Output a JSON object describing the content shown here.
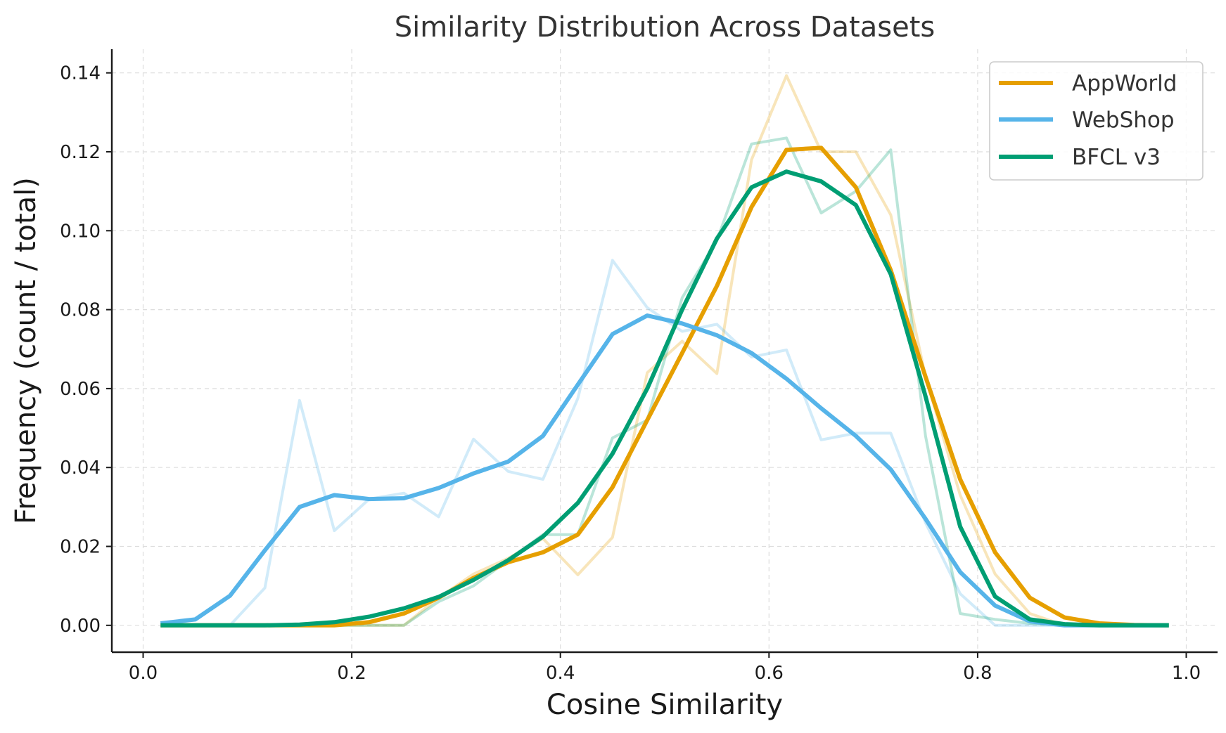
{
  "chart_data": {
    "type": "line",
    "title": "Similarity Distribution Across Datasets",
    "xlabel": "Cosine Similarity",
    "ylabel": "Frequency (count / total)",
    "xlim": [
      -0.03,
      1.03
    ],
    "ylim": [
      -0.0068,
      0.146
    ],
    "xticks": [
      0.0,
      0.2,
      0.4,
      0.6,
      0.8,
      1.0
    ],
    "xtick_labels": [
      "0.0",
      "0.2",
      "0.4",
      "0.6",
      "0.8",
      "1.0"
    ],
    "yticks": [
      0.0,
      0.02,
      0.04,
      0.06,
      0.08,
      0.1,
      0.12,
      0.14
    ],
    "ytick_labels": [
      "0.00",
      "0.02",
      "0.04",
      "0.06",
      "0.08",
      "0.10",
      "0.12",
      "0.14"
    ],
    "grid": true,
    "legend_position": "top-right",
    "x": [
      0.0167,
      0.05,
      0.0833,
      0.1167,
      0.15,
      0.1833,
      0.2167,
      0.25,
      0.2833,
      0.3167,
      0.35,
      0.3833,
      0.4167,
      0.45,
      0.4833,
      0.5167,
      0.55,
      0.5833,
      0.6167,
      0.65,
      0.6833,
      0.7167,
      0.75,
      0.7833,
      0.8167,
      0.85,
      0.8833,
      0.9167,
      0.95,
      0.9833
    ],
    "series": [
      {
        "name": "AppWorld",
        "color": "#E69F00",
        "smoothed": [
          0.0,
          0.0,
          0.0,
          0.0,
          0.0,
          0.0,
          0.0008,
          0.003,
          0.007,
          0.012,
          0.016,
          0.0185,
          0.023,
          0.035,
          0.052,
          0.069,
          0.086,
          0.106,
          0.1205,
          0.121,
          0.111,
          0.09,
          0.063,
          0.037,
          0.0185,
          0.007,
          0.002,
          0.0005,
          0.0001,
          0.0
        ],
        "raw": [
          0.0,
          0.0,
          0.0,
          0.0,
          0.0,
          0.0,
          0.0,
          0.0,
          0.007,
          0.013,
          0.017,
          0.022,
          0.0128,
          0.0223,
          0.064,
          0.072,
          0.0638,
          0.118,
          0.1393,
          0.12,
          0.12,
          0.104,
          0.063,
          0.033,
          0.013,
          0.003,
          0.0,
          0.0,
          0.0,
          0.0
        ]
      },
      {
        "name": "WebShop",
        "color": "#56B4E9",
        "smoothed": [
          0.0005,
          0.0015,
          0.0075,
          0.019,
          0.03,
          0.033,
          0.032,
          0.0322,
          0.0348,
          0.0385,
          0.0415,
          0.048,
          0.061,
          0.0738,
          0.0785,
          0.0765,
          0.0735,
          0.069,
          0.0625,
          0.055,
          0.048,
          0.0395,
          0.027,
          0.0135,
          0.005,
          0.001,
          0.0,
          0.0,
          0.0,
          0.0
        ],
        "raw": [
          0.0,
          0.0,
          0.0,
          0.0095,
          0.057,
          0.024,
          0.032,
          0.0335,
          0.0275,
          0.0472,
          0.039,
          0.037,
          0.0575,
          0.0925,
          0.0805,
          0.0745,
          0.0763,
          0.068,
          0.0698,
          0.047,
          0.0487,
          0.0487,
          0.026,
          0.008,
          0.0,
          0.0,
          0.0,
          0.0,
          0.0,
          0.0
        ]
      },
      {
        "name": "BFCL v3",
        "color": "#009E73",
        "smoothed": [
          0.0,
          0.0,
          0.0,
          0.0,
          0.0002,
          0.0008,
          0.0022,
          0.0043,
          0.0072,
          0.0115,
          0.0165,
          0.0225,
          0.031,
          0.0435,
          0.06,
          0.08,
          0.098,
          0.111,
          0.115,
          0.1125,
          0.1065,
          0.089,
          0.058,
          0.025,
          0.0073,
          0.0015,
          0.0003,
          0.0,
          0.0,
          0.0
        ],
        "raw": [
          0.0,
          0.0,
          0.0,
          0.0,
          0.0,
          0.0,
          0.0,
          0.0,
          0.006,
          0.01,
          0.0165,
          0.023,
          0.023,
          0.0475,
          0.052,
          0.083,
          0.0975,
          0.122,
          0.1235,
          0.1045,
          0.11,
          0.1205,
          0.048,
          0.003,
          0.0015,
          0.0005,
          0.0,
          0.0,
          0.0,
          0.0
        ]
      }
    ]
  }
}
